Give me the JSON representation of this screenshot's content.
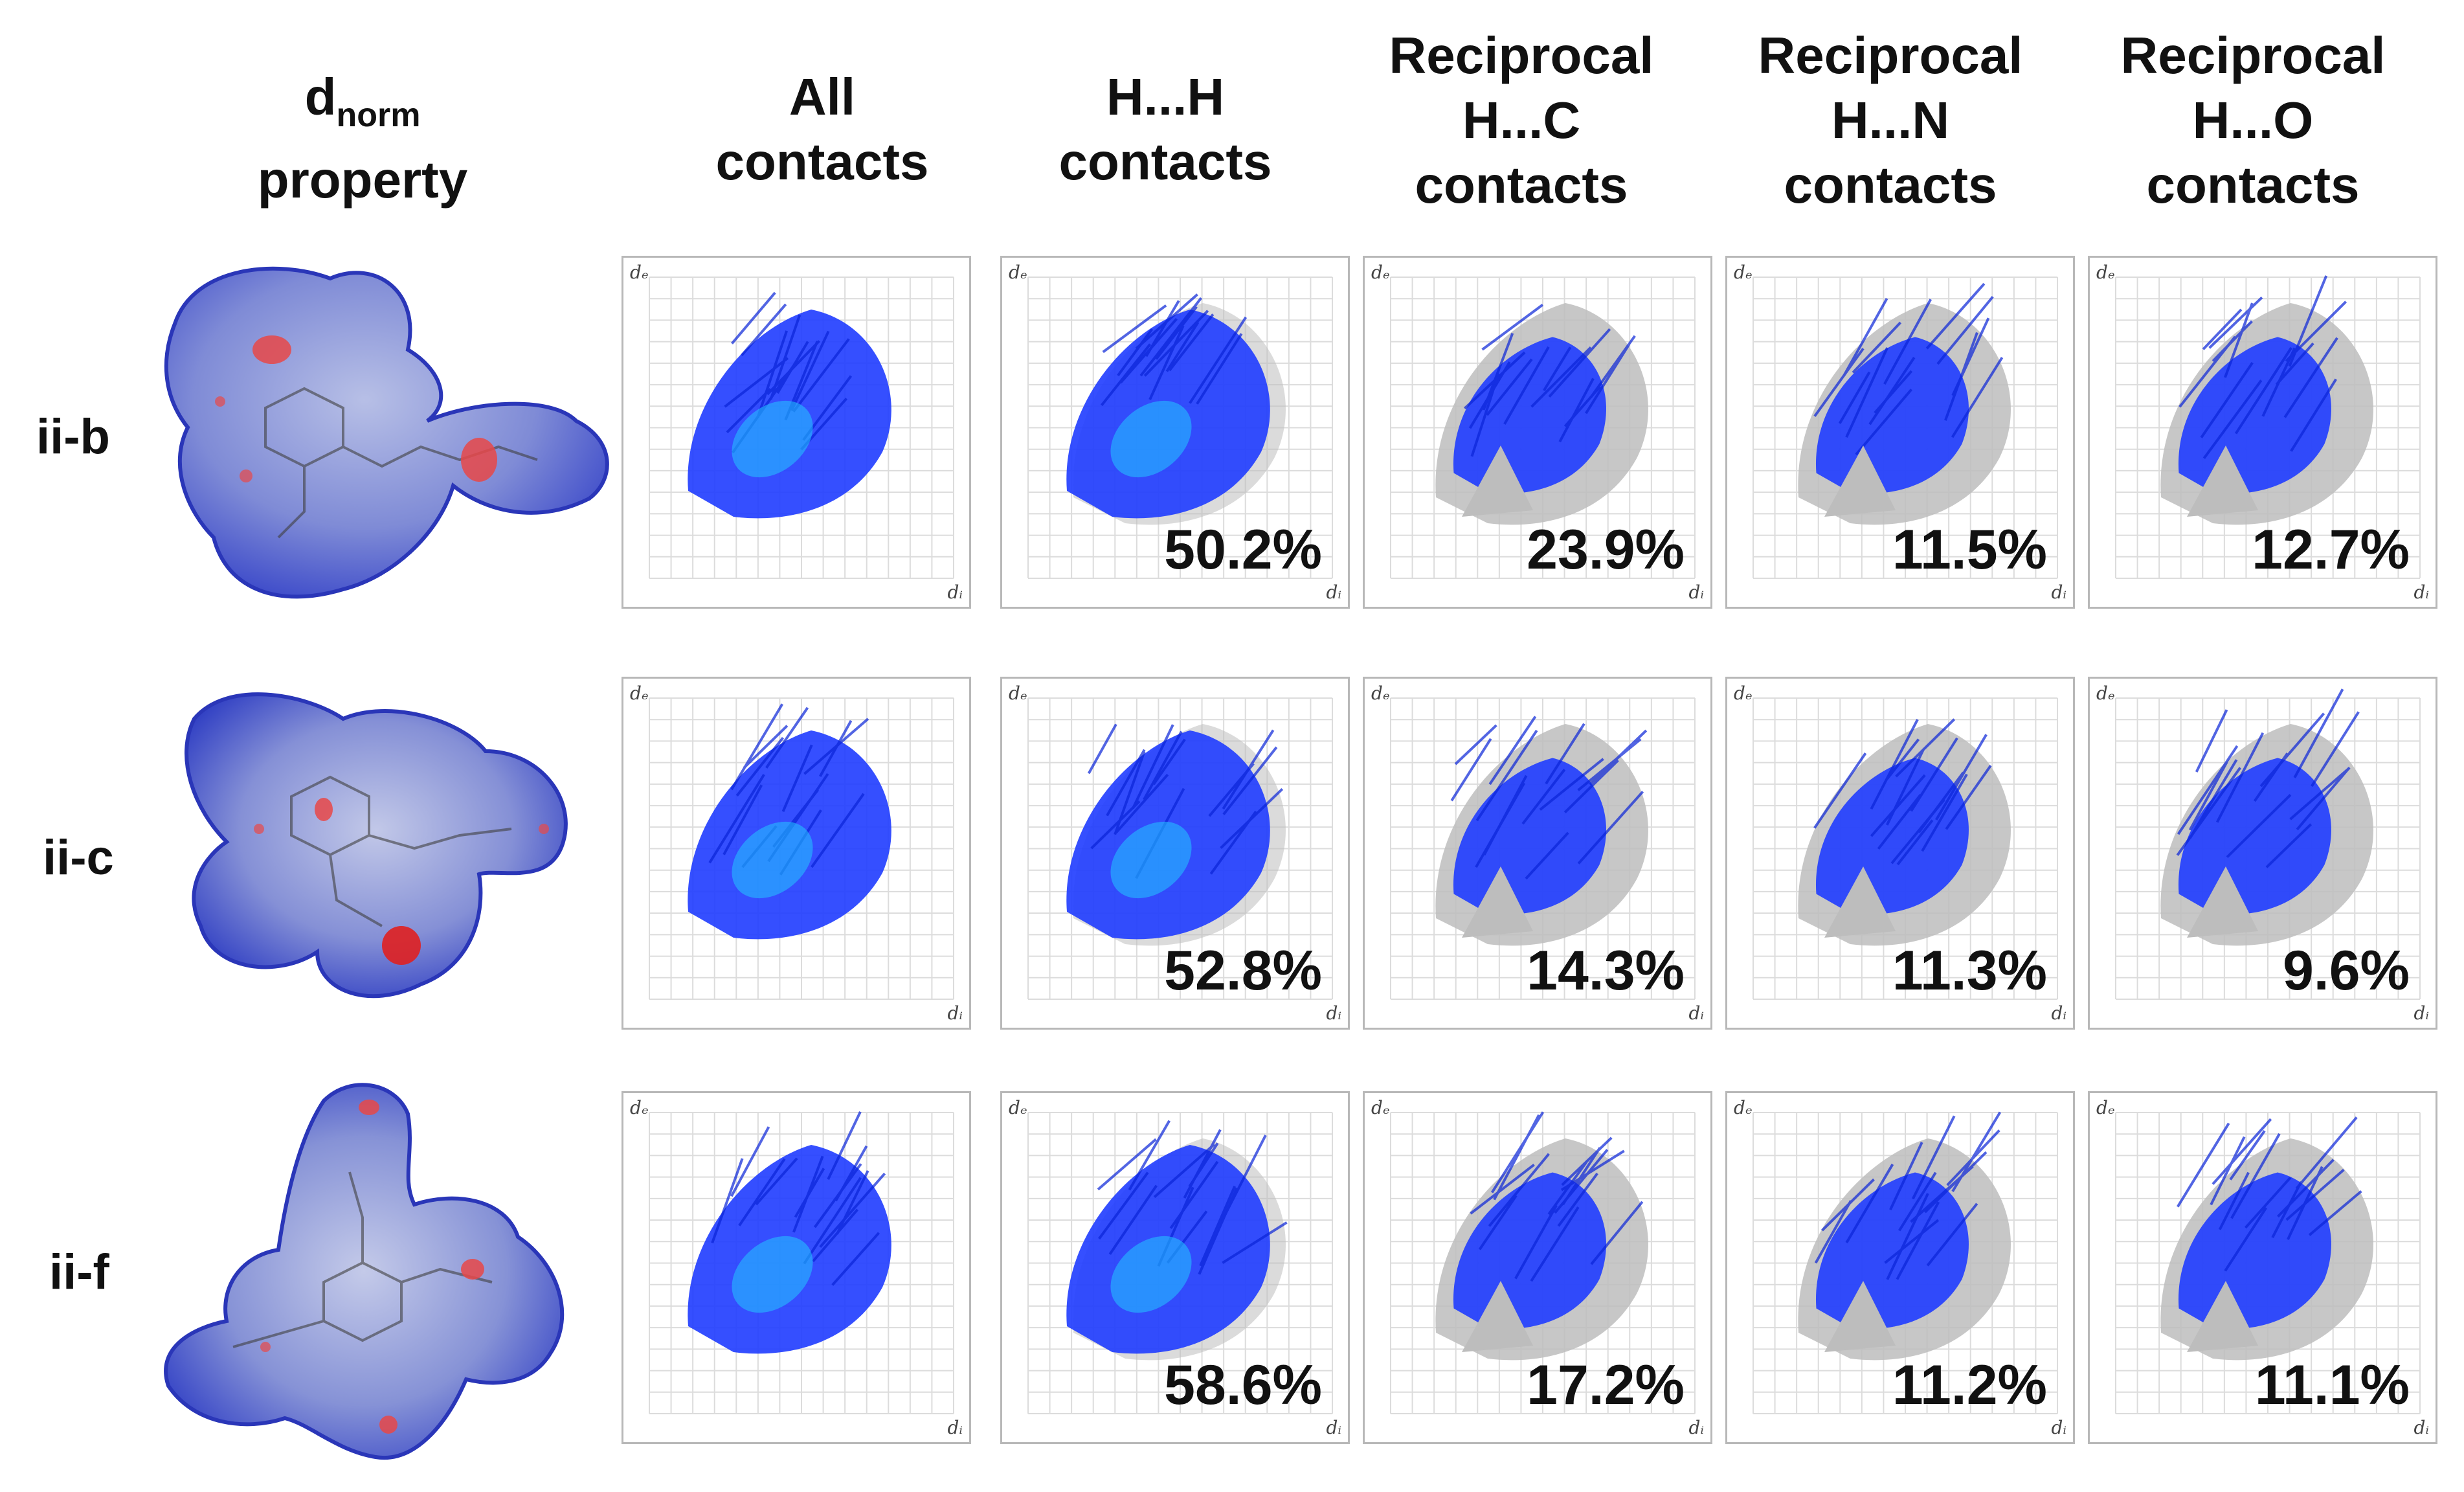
{
  "headers": {
    "dnorm": {
      "main": "d",
      "sub": "norm",
      "line2": "property"
    },
    "columns": [
      {
        "id": "all",
        "lines": [
          "All",
          "contacts"
        ]
      },
      {
        "id": "hh",
        "lines": [
          "H...H",
          "contacts"
        ]
      },
      {
        "id": "hc",
        "lines": [
          "Reciprocal",
          "H...C",
          "contacts"
        ]
      },
      {
        "id": "hn",
        "lines": [
          "Reciprocal",
          "H...N",
          "contacts"
        ]
      },
      {
        "id": "ho",
        "lines": [
          "Reciprocal",
          "H...O",
          "contacts"
        ]
      }
    ]
  },
  "rows": [
    {
      "label": "ii-b",
      "percentages": [
        "",
        "50.2%",
        "23.9%",
        "11.5%",
        "12.7%"
      ]
    },
    {
      "label": "ii-c",
      "percentages": [
        "",
        "52.8%",
        "14.3%",
        "11.3%",
        "9.6%"
      ]
    },
    {
      "label": "ii-f",
      "percentages": [
        "",
        "58.6%",
        "17.2%",
        "11.2%",
        "11.1%"
      ]
    }
  ],
  "axis_labels": {
    "y": "dₑ",
    "x": "dᵢ"
  },
  "colors": {
    "fingerprint": "#1f3cff",
    "fingerprint_core": "#22c8ff",
    "background_cloud": "#bdbdbd",
    "grid": "#dcdcdc",
    "surface": "#6f7fd8",
    "hotspot": "#e03030"
  }
}
